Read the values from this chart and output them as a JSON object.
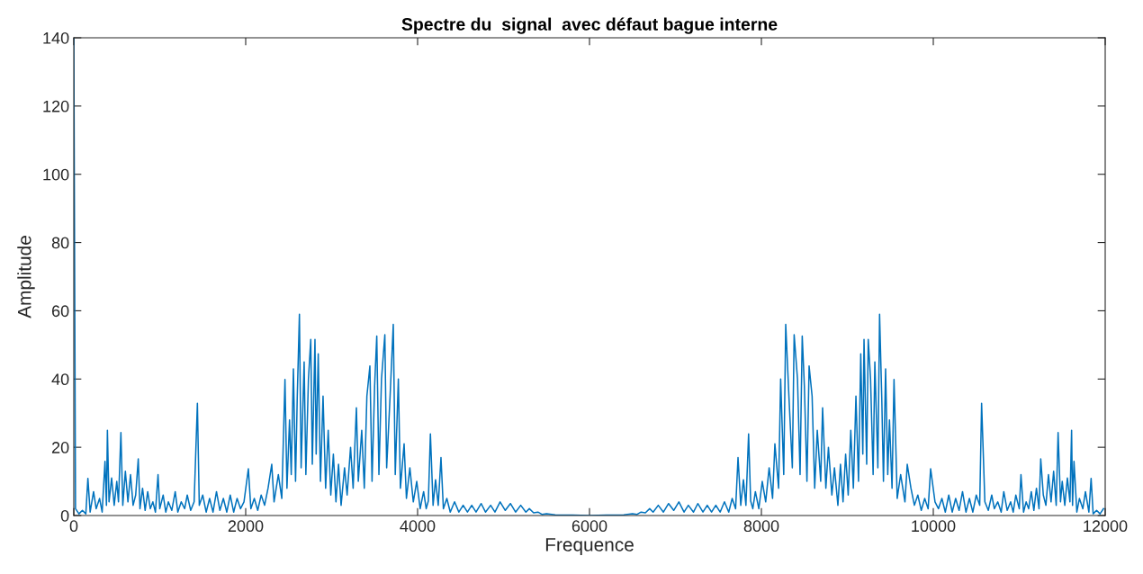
{
  "chart_data": {
    "type": "line",
    "title": "Spectre du  signal  avec défaut bague interne",
    "xlabel": "Frequence",
    "ylabel": "Amplitude",
    "xlim": [
      0,
      12000
    ],
    "ylim": [
      0,
      140
    ],
    "xticks": [
      0,
      2000,
      4000,
      6000,
      8000,
      10000,
      12000
    ],
    "yticks": [
      0,
      20,
      40,
      60,
      80,
      100,
      120,
      140
    ],
    "grid": false,
    "legend": false,
    "marker": "none",
    "line_style": "solid",
    "series": [
      {
        "color": "#0072bd",
        "x": [
          0,
          20,
          60,
          100,
          140,
          164,
          190,
          230,
          260,
          300,
          330,
          363,
          380,
          391,
          410,
          440,
          470,
          500,
          520,
          548,
          570,
          600,
          630,
          660,
          690,
          720,
          750,
          770,
          800,
          830,
          860,
          890,
          920,
          950,
          980,
          1000,
          1040,
          1070,
          1100,
          1140,
          1180,
          1210,
          1250,
          1290,
          1320,
          1360,
          1400,
          1438,
          1460,
          1500,
          1540,
          1580,
          1620,
          1660,
          1700,
          1740,
          1780,
          1820,
          1860,
          1900,
          1940,
          1980,
          2031,
          2060,
          2100,
          2140,
          2180,
          2220,
          2260,
          2303,
          2330,
          2380,
          2420,
          2457,
          2480,
          2510,
          2530,
          2555,
          2580,
          2600,
          2625,
          2645,
          2680,
          2700,
          2730,
          2757,
          2775,
          2806,
          2820,
          2844,
          2870,
          2900,
          2930,
          2960,
          2990,
          3020,
          3050,
          3080,
          3110,
          3150,
          3180,
          3220,
          3250,
          3288,
          3310,
          3350,
          3380,
          3410,
          3445,
          3470,
          3500,
          3525,
          3550,
          3580,
          3619,
          3640,
          3680,
          3717,
          3740,
          3776,
          3800,
          3843,
          3870,
          3910,
          3950,
          3990,
          4030,
          4070,
          4100,
          4125,
          4149,
          4180,
          4209,
          4240,
          4272,
          4300,
          4340,
          4380,
          4430,
          4480,
          4530,
          4580,
          4630,
          4680,
          4740,
          4790,
          4850,
          4900,
          4960,
          5020,
          5080,
          5140,
          5200,
          5260,
          5300,
          5350,
          5400,
          5450,
          5500,
          5600,
          5800,
          6000,
          6200,
          6400,
          6500,
          6550,
          6600,
          6650,
          6700,
          6740,
          6800,
          6860,
          6920,
          6980,
          7040,
          7100,
          7150,
          7210,
          7260,
          7320,
          7370,
          7420,
          7470,
          7520,
          7570,
          7620,
          7660,
          7700,
          7728,
          7760,
          7791,
          7820,
          7851,
          7875,
          7900,
          7930,
          7970,
          8010,
          8050,
          8090,
          8130,
          8157,
          8200,
          8224,
          8260,
          8283,
          8320,
          8360,
          8381,
          8420,
          8450,
          8475,
          8500,
          8530,
          8555,
          8590,
          8620,
          8650,
          8690,
          8712,
          8750,
          8780,
          8820,
          8850,
          8890,
          8920,
          8950,
          8980,
          9010,
          9040,
          9070,
          9100,
          9130,
          9156,
          9180,
          9194,
          9225,
          9243,
          9270,
          9300,
          9320,
          9355,
          9375,
          9400,
          9420,
          9445,
          9470,
          9490,
          9520,
          9543,
          9580,
          9620,
          9670,
          9697,
          9740,
          9780,
          9820,
          9860,
          9900,
          9940,
          9969,
          10020,
          10060,
          10100,
          10140,
          10180,
          10220,
          10260,
          10300,
          10340,
          10380,
          10420,
          10460,
          10500,
          10540,
          10562,
          10600,
          10640,
          10680,
          10710,
          10750,
          10790,
          10820,
          10860,
          10900,
          10930,
          10960,
          11000,
          11020,
          11050,
          11080,
          11110,
          11140,
          11170,
          11200,
          11230,
          11250,
          11280,
          11310,
          11340,
          11370,
          11400,
          11430,
          11452,
          11480,
          11500,
          11530,
          11560,
          11590,
          11609,
          11620,
          11637,
          11670,
          11700,
          11740,
          11770,
          11810,
          11836,
          11860,
          11900,
          11940,
          11980
        ],
        "values": [
          140,
          2,
          0.5,
          1.5,
          0.5,
          10.9,
          1,
          7,
          2,
          5,
          1,
          15.9,
          3,
          25,
          4,
          11,
          3,
          10,
          4,
          24.3,
          3,
          13,
          4,
          12,
          3,
          6,
          16.6,
          2,
          8,
          1.5,
          7,
          2,
          4,
          1,
          12,
          2,
          6,
          1,
          4,
          1.5,
          7,
          1,
          4,
          2,
          6,
          1.5,
          4,
          32.9,
          3,
          6,
          1,
          5,
          1,
          7,
          1.5,
          5,
          1,
          6,
          1,
          5,
          2,
          4,
          13.7,
          2,
          5,
          1.5,
          6,
          3,
          8,
          15,
          4,
          12,
          5,
          39.9,
          8,
          28,
          12,
          43,
          10,
          35,
          59,
          14,
          45,
          12,
          40,
          51.6,
          15,
          51.6,
          18,
          47.4,
          10,
          35,
          8,
          25,
          6,
          18,
          4,
          15,
          3,
          14,
          6,
          20,
          8,
          31.6,
          10,
          25,
          8,
          35,
          43.8,
          10,
          38,
          52.6,
          12,
          40,
          53,
          14,
          35,
          56,
          12,
          40,
          8,
          21,
          5,
          14,
          4,
          10,
          2,
          7,
          2,
          4.3,
          23.9,
          3,
          10.5,
          3,
          17,
          2,
          5,
          1,
          4,
          1,
          3,
          1,
          3,
          1,
          3.5,
          1,
          3,
          1,
          4,
          1.5,
          3.5,
          1,
          3,
          1,
          2,
          0.8,
          1,
          0.3,
          0.5,
          0.2,
          0.1,
          0,
          0.1,
          0.2,
          0.5,
          0.3,
          1,
          0.8,
          2,
          1,
          3,
          1,
          3.5,
          1.5,
          4,
          1,
          3,
          1,
          3.5,
          1,
          3,
          1,
          3,
          1,
          4,
          1,
          5,
          2,
          17,
          3,
          10.5,
          3,
          23.9,
          4.3,
          2,
          7,
          2,
          10,
          4,
          14,
          5,
          21,
          8,
          40,
          12,
          56,
          35,
          14,
          53,
          40,
          12,
          52.6,
          38,
          10,
          43.8,
          35,
          8,
          25,
          10,
          31.6,
          8,
          20,
          6,
          14,
          3,
          15,
          4,
          18,
          6,
          25,
          8,
          35,
          10,
          47.4,
          18,
          51.6,
          15,
          51.6,
          40,
          12,
          45,
          14,
          59,
          35,
          10,
          43,
          12,
          28,
          8,
          39.9,
          5,
          12,
          4,
          15,
          8,
          3,
          6,
          1.5,
          5,
          2,
          13.7,
          4,
          2,
          5,
          1,
          6,
          1,
          5,
          1.5,
          7,
          1,
          5,
          1,
          6,
          3,
          32.9,
          4,
          1.5,
          6,
          2,
          4,
          1,
          7,
          1.5,
          4,
          1,
          6,
          2,
          12,
          1,
          4,
          2,
          7,
          1.5,
          8,
          2,
          16.6,
          6,
          3,
          12,
          4,
          13,
          3,
          24.3,
          4,
          10,
          3,
          11,
          4,
          25,
          3,
          15.9,
          1,
          5,
          2,
          7,
          1,
          10.9,
          0.5,
          1.5,
          0.5,
          2
        ]
      }
    ]
  }
}
